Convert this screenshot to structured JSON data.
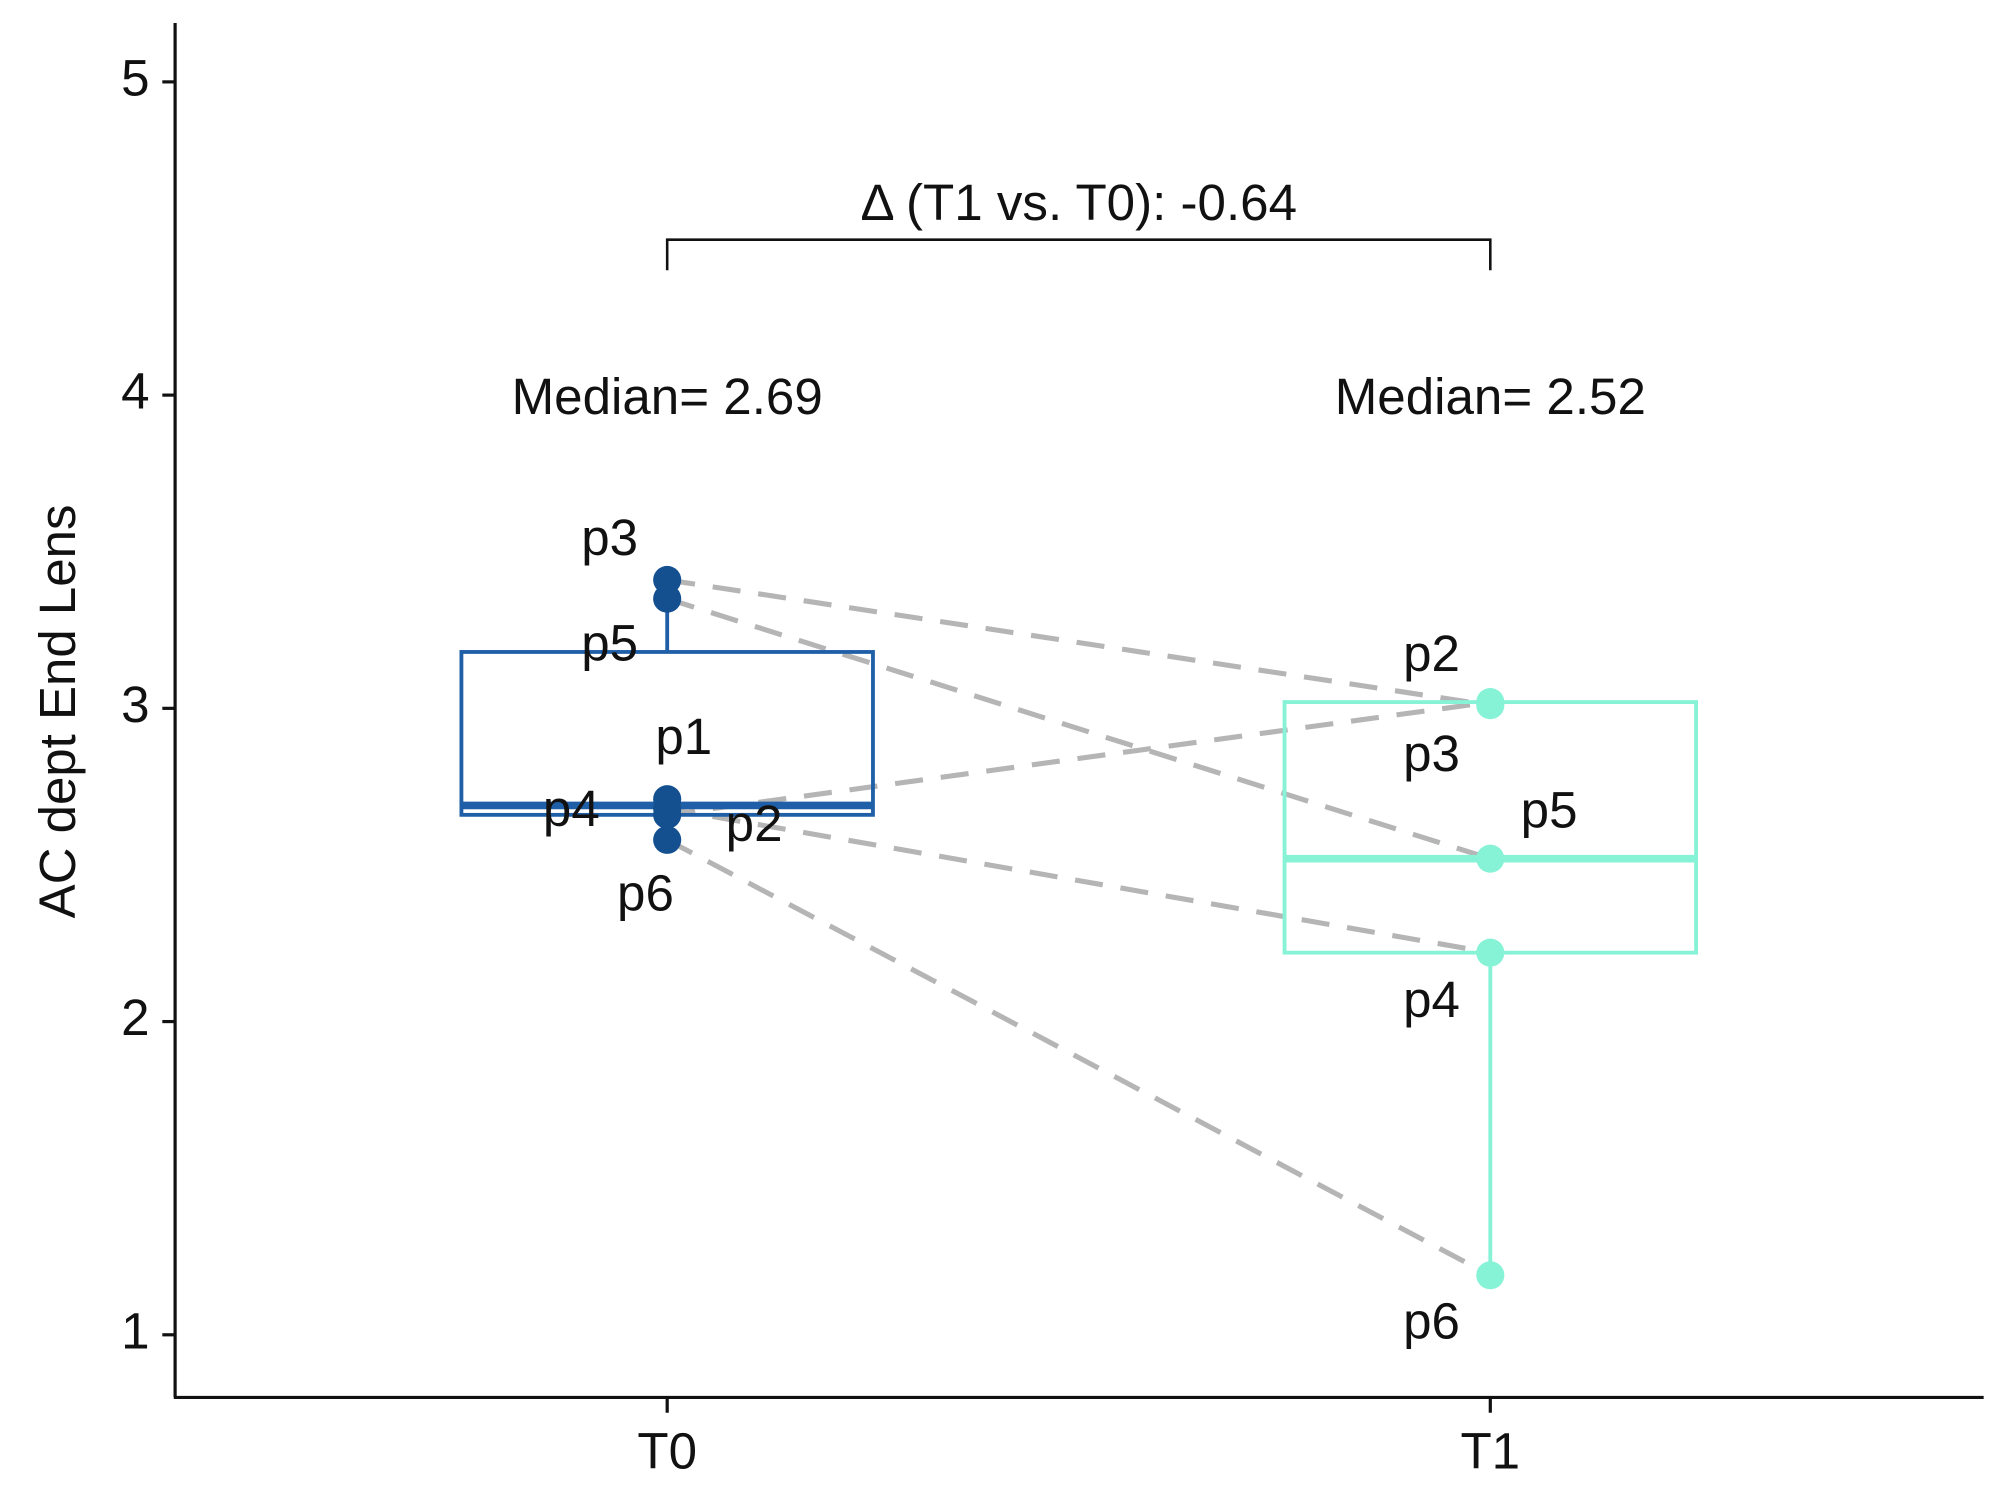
{
  "chart_data": {
    "type": "box",
    "y_label": "AC dept End Lens",
    "categories": [
      "T0",
      "T1"
    ],
    "ylim": [
      0.8,
      5.18
    ],
    "yticks": [
      1,
      2,
      3,
      4,
      5
    ],
    "boxes": [
      {
        "color": "#1f5fa8",
        "min": 2.58,
        "q1": 2.66,
        "median": 2.69,
        "q3": 3.18,
        "max": 3.41,
        "label": "Median= 2.69"
      },
      {
        "color": "#86f2d6",
        "min": 1.19,
        "q1": 2.22,
        "median": 2.52,
        "q3": 3.02,
        "max": 3.02,
        "label": "Median= 2.52"
      }
    ],
    "series": [
      {
        "name": "p1",
        "values": [
          2.71,
          null
        ]
      },
      {
        "name": "p2",
        "values": [
          2.66,
          3.02
        ]
      },
      {
        "name": "p3",
        "values": [
          3.41,
          3.01
        ]
      },
      {
        "name": "p4",
        "values": [
          2.68,
          2.22
        ]
      },
      {
        "name": "p5",
        "values": [
          3.35,
          2.52
        ]
      },
      {
        "name": "p6",
        "values": [
          2.58,
          1.19
        ]
      }
    ],
    "line_color": "#b5b5b5",
    "annotation": "Δ (T1 vs. T0): -0.64"
  }
}
